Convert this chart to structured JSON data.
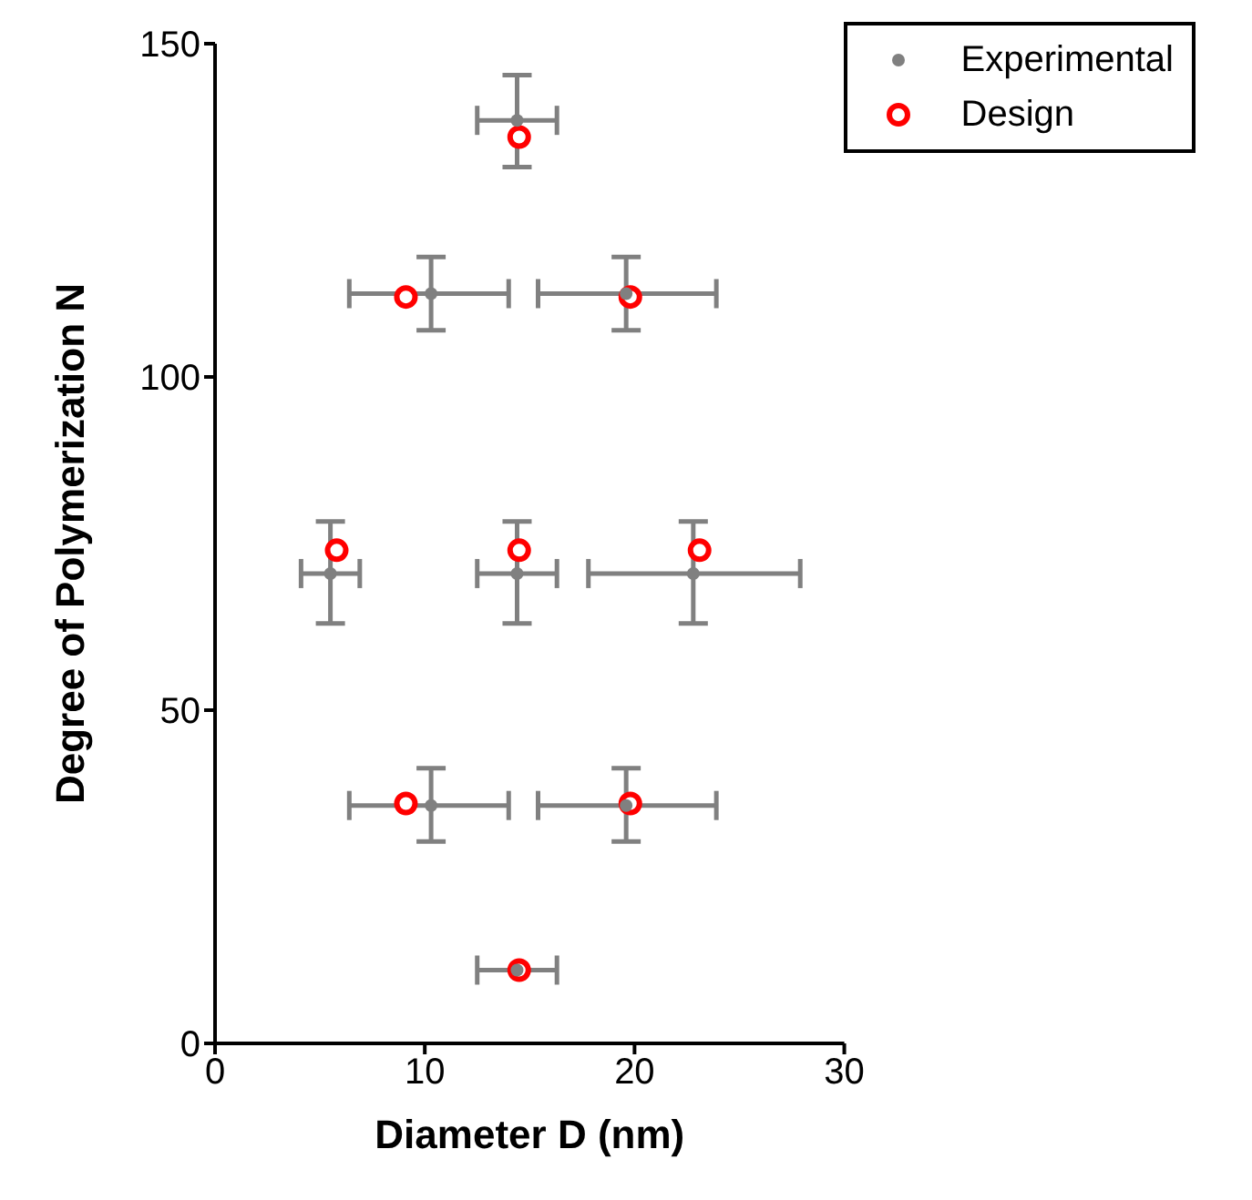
{
  "chart_data": {
    "type": "scatter",
    "xlabel": "Diameter D (nm)",
    "ylabel": "Degree of Polymerization N",
    "xlim": [
      0,
      30
    ],
    "xticks": [
      0,
      10,
      20,
      30
    ],
    "ylim": [
      0,
      150
    ],
    "yticks": [
      0,
      50,
      100,
      150
    ],
    "grid": false,
    "legend": "top right",
    "marker": "circle",
    "series": [
      {
        "name": "Experimental",
        "color": "#808080",
        "x": [
          14.4,
          10.3,
          19.6,
          5.5,
          14.4,
          22.8,
          10.3,
          19.6,
          14.4
        ],
        "values": [
          138.5,
          112.5,
          112.5,
          70.5,
          70.5,
          70.5,
          35.7,
          35.7,
          11
        ],
        "errors": [
          [
            131.5,
            145.3
          ],
          [
            107,
            118
          ],
          [
            107,
            118
          ],
          [
            63,
            78.3
          ],
          [
            63,
            78.3
          ],
          [
            63,
            78.3
          ],
          [
            30.3,
            41.3
          ],
          [
            30.3,
            41.3
          ],
          null
        ],
        "xerrors": [
          [
            12.5,
            16.3
          ],
          [
            6.4,
            14
          ],
          [
            15.4,
            23.9
          ],
          [
            4.1,
            6.9
          ],
          [
            12.5,
            16.3
          ],
          [
            17.8,
            27.9
          ],
          [
            6.4,
            14
          ],
          [
            15.4,
            23.9
          ],
          [
            12.5,
            16.3
          ]
        ]
      },
      {
        "name": "Design",
        "color": "#ff0000",
        "x": [
          14.5,
          9.1,
          19.8,
          5.8,
          14.5,
          23.1,
          9.1,
          19.8,
          14.5
        ],
        "values": [
          136,
          112,
          112,
          74,
          74,
          74,
          36,
          36,
          11
        ]
      }
    ]
  }
}
